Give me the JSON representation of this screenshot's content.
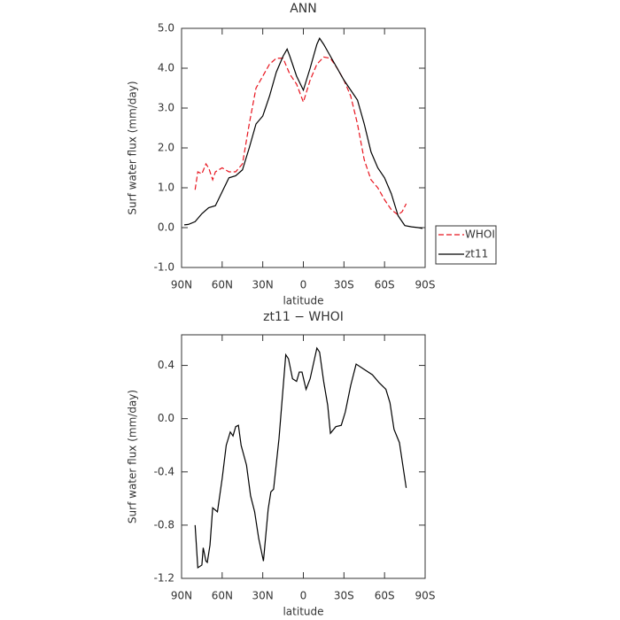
{
  "chart_data": [
    {
      "type": "line",
      "title": "ANN",
      "xlabel": "latitude",
      "ylabel": "Surf water flux (mm/day)",
      "xlim": [
        90,
        -90
      ],
      "xticks": [
        {
          "value": 90,
          "label": "90N"
        },
        {
          "value": 60,
          "label": "60N"
        },
        {
          "value": 30,
          "label": "30N"
        },
        0,
        {
          "value": -30,
          "label": "30S"
        },
        {
          "value": -60,
          "label": "60S"
        },
        {
          "value": -90,
          "label": "90S"
        }
      ],
      "ylim": [
        -1,
        5
      ],
      "yticks": [
        {
          "value": -1,
          "label": "-1.0"
        },
        {
          "value": 0,
          "label": "0.0"
        },
        {
          "value": 1,
          "label": "1.0"
        },
        {
          "value": 2,
          "label": "2.0"
        },
        {
          "value": 3,
          "label": "3.0"
        },
        {
          "value": 4,
          "label": "4.0"
        },
        {
          "value": 5,
          "label": "5.0"
        }
      ],
      "legend": "right",
      "series": [
        {
          "name": "WHOI",
          "color": "#e8141e",
          "dash": "dashed",
          "x": [
            80,
            78,
            75,
            72,
            70,
            67,
            65,
            60,
            55,
            50,
            45,
            40,
            35,
            30,
            25,
            20,
            15,
            10,
            5,
            0,
            -5,
            -10,
            -15,
            -20,
            -25,
            -30,
            -35,
            -40,
            -45,
            -50,
            -55,
            -60,
            -65,
            -70,
            -73,
            -76
          ],
          "values": [
            0.95,
            1.4,
            1.35,
            1.6,
            1.5,
            1.2,
            1.4,
            1.5,
            1.4,
            1.4,
            1.6,
            2.6,
            3.5,
            3.8,
            4.1,
            4.25,
            4.25,
            3.85,
            3.6,
            3.15,
            3.7,
            4.1,
            4.28,
            4.25,
            4.0,
            3.7,
            3.3,
            2.6,
            1.7,
            1.2,
            1.0,
            0.7,
            0.45,
            0.32,
            0.4,
            0.6
          ]
        },
        {
          "name": "zt11",
          "color": "#000000",
          "dash": "solid",
          "x": [
            88,
            85,
            80,
            75,
            70,
            65,
            60,
            55,
            50,
            45,
            40,
            35,
            30,
            25,
            20,
            15,
            12,
            10,
            5,
            0,
            -5,
            -10,
            -12,
            -15,
            -20,
            -25,
            -30,
            -35,
            -40,
            -45,
            -50,
            -55,
            -60,
            -65,
            -70,
            -75,
            -80,
            -85,
            -88
          ],
          "values": [
            0.07,
            0.08,
            0.15,
            0.35,
            0.5,
            0.55,
            0.9,
            1.25,
            1.3,
            1.45,
            2.0,
            2.6,
            2.8,
            3.3,
            3.9,
            4.3,
            4.48,
            4.3,
            3.8,
            3.45,
            4.0,
            4.6,
            4.75,
            4.6,
            4.3,
            4.0,
            3.7,
            3.45,
            3.2,
            2.6,
            1.9,
            1.5,
            1.25,
            0.85,
            0.3,
            0.05,
            0.02,
            0.0,
            -0.02
          ]
        }
      ]
    },
    {
      "type": "line",
      "title": "zt11 − WHOI",
      "xlabel": "latitude",
      "ylabel": "Surf water flux (mm/day)",
      "xlim": [
        90,
        -90
      ],
      "xticks": [
        {
          "value": 90,
          "label": "90N"
        },
        {
          "value": 60,
          "label": "60N"
        },
        {
          "value": 30,
          "label": "30N"
        },
        0,
        {
          "value": -30,
          "label": "30S"
        },
        {
          "value": -60,
          "label": "60S"
        },
        {
          "value": -90,
          "label": "90S"
        }
      ],
      "ylim": [
        -1.2,
        0.63
      ],
      "yticks": [
        -1.2,
        -0.8,
        -0.4,
        {
          "value": 0,
          "label": "0.0"
        },
        0.4
      ],
      "series": [
        {
          "color": "#000000",
          "dash": "solid",
          "x": [
            80,
            78,
            75,
            74,
            72,
            71,
            69,
            67,
            63.5,
            60,
            57,
            54,
            52,
            50,
            48,
            46,
            42,
            39,
            36,
            33,
            29.5,
            26,
            24,
            22,
            18,
            13,
            11,
            8,
            5,
            3,
            1,
            -2,
            -5,
            -10,
            -12,
            -15,
            -18,
            -20,
            -24,
            -28,
            -31,
            -35,
            -39,
            -45,
            -51,
            -56,
            -61,
            -64,
            -67,
            -71,
            -76
          ],
          "values": [
            -0.8,
            -1.12,
            -1.1,
            -0.97,
            -1.07,
            -1.08,
            -0.95,
            -0.67,
            -0.7,
            -0.45,
            -0.2,
            -0.1,
            -0.13,
            -0.06,
            -0.05,
            -0.2,
            -0.35,
            -0.58,
            -0.7,
            -0.9,
            -1.07,
            -0.68,
            -0.55,
            -0.53,
            -0.15,
            0.48,
            0.45,
            0.3,
            0.28,
            0.35,
            0.35,
            0.22,
            0.3,
            0.53,
            0.5,
            0.28,
            0.1,
            -0.11,
            -0.06,
            -0.05,
            0.05,
            0.25,
            0.41,
            0.37,
            0.33,
            0.27,
            0.22,
            0.12,
            -0.08,
            -0.18,
            -0.52
          ]
        }
      ]
    }
  ]
}
